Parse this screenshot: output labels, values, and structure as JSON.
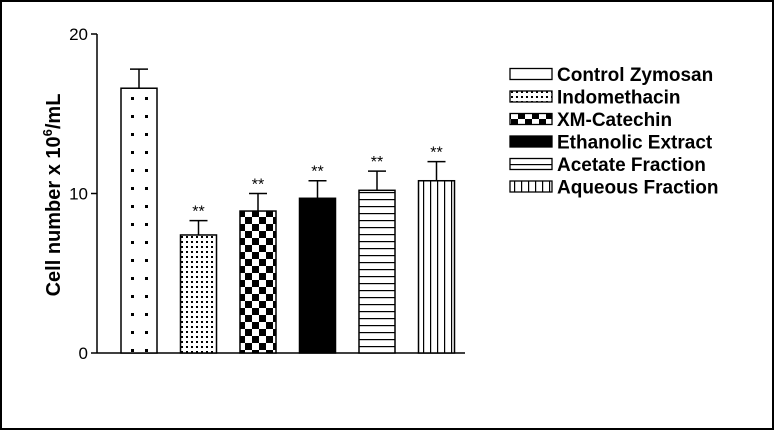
{
  "chart_data": {
    "type": "bar",
    "title": "",
    "ylabel": {
      "main": "Cell number x 10",
      "superscript": "6",
      "suffix": "/mL"
    },
    "xlabel": "",
    "ylim": [
      0,
      20
    ],
    "yticks": [
      "0",
      "10",
      "20"
    ],
    "categories": [
      "Control Zymosan",
      "Indomethacin",
      "XM-Catechin",
      "Ethanolic Extract",
      "Acetate Fraction",
      "Aqueous Fraction"
    ],
    "values": [
      16.6,
      7.4,
      8.9,
      9.7,
      10.2,
      10.8
    ],
    "errors": [
      1.2,
      0.9,
      1.1,
      1.1,
      1.2,
      1.2
    ],
    "significance": [
      "",
      "**",
      "**",
      "**",
      "**",
      "**"
    ],
    "patterns": [
      "dots-sparse",
      "dots-dense",
      "checker",
      "solid",
      "horizontal",
      "vertical"
    ],
    "legend_position": "right",
    "grid": false
  }
}
